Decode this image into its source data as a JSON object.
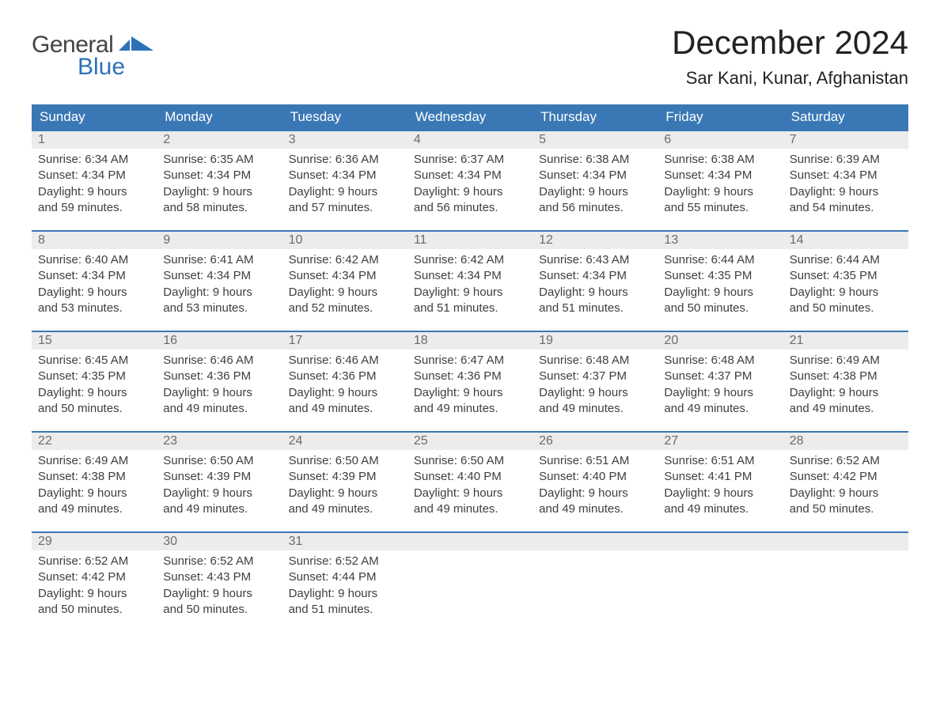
{
  "brand": {
    "word1": "General",
    "word2": "Blue",
    "accent_color": "#2d72b8"
  },
  "title": "December 2024",
  "location": "Sar Kani, Kunar, Afghanistan",
  "colors": {
    "header_bg": "#3a78b5",
    "header_text": "#ffffff",
    "daynum_bg": "#ececec",
    "daynum_text": "#6b6b6b",
    "body_text": "#3e3e3e",
    "week_border": "#3a78b5"
  },
  "layout": {
    "columns": 7,
    "rows": 5,
    "cell_font_size": 15,
    "weekday_font_size": 17
  },
  "weekdays": [
    "Sunday",
    "Monday",
    "Tuesday",
    "Wednesday",
    "Thursday",
    "Friday",
    "Saturday"
  ],
  "weeks": [
    [
      {
        "n": "1",
        "sunrise": "Sunrise: 6:34 AM",
        "sunset": "Sunset: 4:34 PM",
        "d1": "Daylight: 9 hours",
        "d2": "and 59 minutes."
      },
      {
        "n": "2",
        "sunrise": "Sunrise: 6:35 AM",
        "sunset": "Sunset: 4:34 PM",
        "d1": "Daylight: 9 hours",
        "d2": "and 58 minutes."
      },
      {
        "n": "3",
        "sunrise": "Sunrise: 6:36 AM",
        "sunset": "Sunset: 4:34 PM",
        "d1": "Daylight: 9 hours",
        "d2": "and 57 minutes."
      },
      {
        "n": "4",
        "sunrise": "Sunrise: 6:37 AM",
        "sunset": "Sunset: 4:34 PM",
        "d1": "Daylight: 9 hours",
        "d2": "and 56 minutes."
      },
      {
        "n": "5",
        "sunrise": "Sunrise: 6:38 AM",
        "sunset": "Sunset: 4:34 PM",
        "d1": "Daylight: 9 hours",
        "d2": "and 56 minutes."
      },
      {
        "n": "6",
        "sunrise": "Sunrise: 6:38 AM",
        "sunset": "Sunset: 4:34 PM",
        "d1": "Daylight: 9 hours",
        "d2": "and 55 minutes."
      },
      {
        "n": "7",
        "sunrise": "Sunrise: 6:39 AM",
        "sunset": "Sunset: 4:34 PM",
        "d1": "Daylight: 9 hours",
        "d2": "and 54 minutes."
      }
    ],
    [
      {
        "n": "8",
        "sunrise": "Sunrise: 6:40 AM",
        "sunset": "Sunset: 4:34 PM",
        "d1": "Daylight: 9 hours",
        "d2": "and 53 minutes."
      },
      {
        "n": "9",
        "sunrise": "Sunrise: 6:41 AM",
        "sunset": "Sunset: 4:34 PM",
        "d1": "Daylight: 9 hours",
        "d2": "and 53 minutes."
      },
      {
        "n": "10",
        "sunrise": "Sunrise: 6:42 AM",
        "sunset": "Sunset: 4:34 PM",
        "d1": "Daylight: 9 hours",
        "d2": "and 52 minutes."
      },
      {
        "n": "11",
        "sunrise": "Sunrise: 6:42 AM",
        "sunset": "Sunset: 4:34 PM",
        "d1": "Daylight: 9 hours",
        "d2": "and 51 minutes."
      },
      {
        "n": "12",
        "sunrise": "Sunrise: 6:43 AM",
        "sunset": "Sunset: 4:34 PM",
        "d1": "Daylight: 9 hours",
        "d2": "and 51 minutes."
      },
      {
        "n": "13",
        "sunrise": "Sunrise: 6:44 AM",
        "sunset": "Sunset: 4:35 PM",
        "d1": "Daylight: 9 hours",
        "d2": "and 50 minutes."
      },
      {
        "n": "14",
        "sunrise": "Sunrise: 6:44 AM",
        "sunset": "Sunset: 4:35 PM",
        "d1": "Daylight: 9 hours",
        "d2": "and 50 minutes."
      }
    ],
    [
      {
        "n": "15",
        "sunrise": "Sunrise: 6:45 AM",
        "sunset": "Sunset: 4:35 PM",
        "d1": "Daylight: 9 hours",
        "d2": "and 50 minutes."
      },
      {
        "n": "16",
        "sunrise": "Sunrise: 6:46 AM",
        "sunset": "Sunset: 4:36 PM",
        "d1": "Daylight: 9 hours",
        "d2": "and 49 minutes."
      },
      {
        "n": "17",
        "sunrise": "Sunrise: 6:46 AM",
        "sunset": "Sunset: 4:36 PM",
        "d1": "Daylight: 9 hours",
        "d2": "and 49 minutes."
      },
      {
        "n": "18",
        "sunrise": "Sunrise: 6:47 AM",
        "sunset": "Sunset: 4:36 PM",
        "d1": "Daylight: 9 hours",
        "d2": "and 49 minutes."
      },
      {
        "n": "19",
        "sunrise": "Sunrise: 6:48 AM",
        "sunset": "Sunset: 4:37 PM",
        "d1": "Daylight: 9 hours",
        "d2": "and 49 minutes."
      },
      {
        "n": "20",
        "sunrise": "Sunrise: 6:48 AM",
        "sunset": "Sunset: 4:37 PM",
        "d1": "Daylight: 9 hours",
        "d2": "and 49 minutes."
      },
      {
        "n": "21",
        "sunrise": "Sunrise: 6:49 AM",
        "sunset": "Sunset: 4:38 PM",
        "d1": "Daylight: 9 hours",
        "d2": "and 49 minutes."
      }
    ],
    [
      {
        "n": "22",
        "sunrise": "Sunrise: 6:49 AM",
        "sunset": "Sunset: 4:38 PM",
        "d1": "Daylight: 9 hours",
        "d2": "and 49 minutes."
      },
      {
        "n": "23",
        "sunrise": "Sunrise: 6:50 AM",
        "sunset": "Sunset: 4:39 PM",
        "d1": "Daylight: 9 hours",
        "d2": "and 49 minutes."
      },
      {
        "n": "24",
        "sunrise": "Sunrise: 6:50 AM",
        "sunset": "Sunset: 4:39 PM",
        "d1": "Daylight: 9 hours",
        "d2": "and 49 minutes."
      },
      {
        "n": "25",
        "sunrise": "Sunrise: 6:50 AM",
        "sunset": "Sunset: 4:40 PM",
        "d1": "Daylight: 9 hours",
        "d2": "and 49 minutes."
      },
      {
        "n": "26",
        "sunrise": "Sunrise: 6:51 AM",
        "sunset": "Sunset: 4:40 PM",
        "d1": "Daylight: 9 hours",
        "d2": "and 49 minutes."
      },
      {
        "n": "27",
        "sunrise": "Sunrise: 6:51 AM",
        "sunset": "Sunset: 4:41 PM",
        "d1": "Daylight: 9 hours",
        "d2": "and 49 minutes."
      },
      {
        "n": "28",
        "sunrise": "Sunrise: 6:52 AM",
        "sunset": "Sunset: 4:42 PM",
        "d1": "Daylight: 9 hours",
        "d2": "and 50 minutes."
      }
    ],
    [
      {
        "n": "29",
        "sunrise": "Sunrise: 6:52 AM",
        "sunset": "Sunset: 4:42 PM",
        "d1": "Daylight: 9 hours",
        "d2": "and 50 minutes."
      },
      {
        "n": "30",
        "sunrise": "Sunrise: 6:52 AM",
        "sunset": "Sunset: 4:43 PM",
        "d1": "Daylight: 9 hours",
        "d2": "and 50 minutes."
      },
      {
        "n": "31",
        "sunrise": "Sunrise: 6:52 AM",
        "sunset": "Sunset: 4:44 PM",
        "d1": "Daylight: 9 hours",
        "d2": "and 51 minutes."
      },
      null,
      null,
      null,
      null
    ]
  ]
}
